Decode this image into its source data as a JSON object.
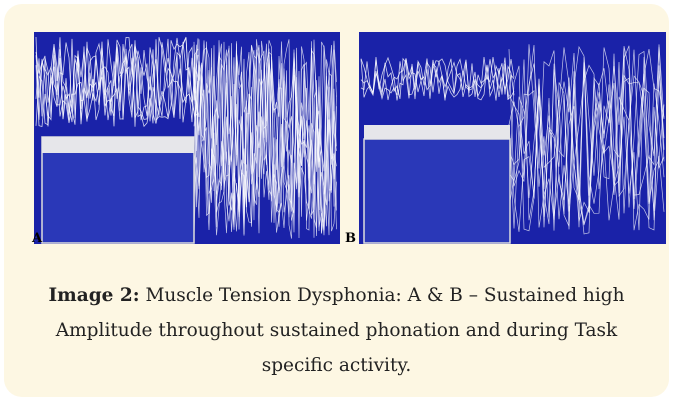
{
  "figure": {
    "panels": [
      {
        "label": "A"
      },
      {
        "label": "B"
      }
    ],
    "caption": {
      "label": "Image 2:",
      "text": "Muscle Tension Dysphonia: A & B – Sustained high Amplitude throughout sustained phonation and during Task specific activity."
    }
  }
}
